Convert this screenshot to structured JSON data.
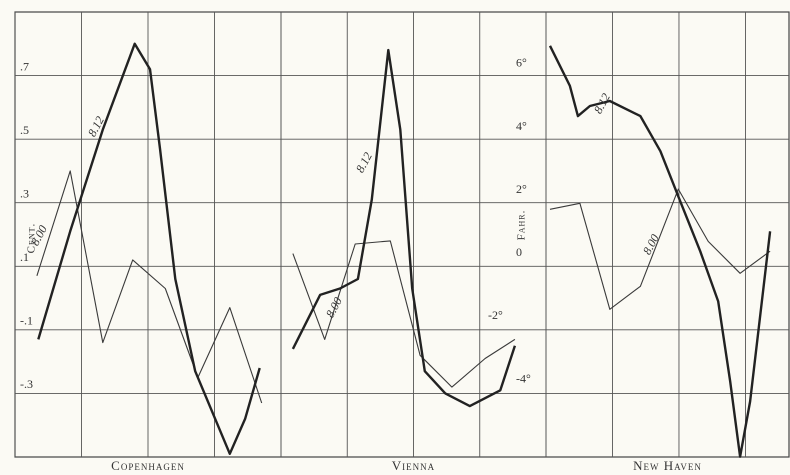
{
  "chart_data": [
    {
      "type": "line",
      "title": "Copenhagen",
      "ylabel": "Cent.",
      "xlim": [
        0,
        4
      ],
      "xticks": [
        0,
        1,
        2,
        3,
        4
      ],
      "ylim": [
        -0.5,
        0.9
      ],
      "yticks": [
        {
          "value": -0.3,
          "label": "-.3"
        },
        {
          "value": -0.1,
          "label": "-.1"
        },
        {
          "value": 0.1,
          "label": ".1"
        },
        {
          "value": 0.3,
          "label": ".3"
        },
        {
          "value": 0.5,
          "label": ".5"
        },
        {
          "value": 0.7,
          "label": ".7"
        }
      ],
      "grid": true,
      "series": [
        {
          "name": "8.00",
          "color": "#3a3a3a",
          "x": [
            0.33,
            0.83,
            1.32,
            1.77,
            2.26,
            2.75,
            3.23,
            3.71
          ],
          "values": [
            0.07,
            0.4,
            -0.14,
            0.12,
            0.03,
            -0.25,
            -0.03,
            -0.33
          ]
        },
        {
          "name": "8.12",
          "color": "#222222",
          "x": [
            0.35,
            0.83,
            1.32,
            1.8,
            2.03,
            2.18,
            2.41,
            2.71,
            3.23,
            3.46,
            3.68
          ],
          "values": [
            -0.13,
            0.21,
            0.53,
            0.8,
            0.72,
            0.47,
            0.06,
            -0.23,
            -0.49,
            -0.38,
            -0.22
          ]
        }
      ]
    },
    {
      "type": "line",
      "title": "Vienna",
      "xlim": [
        0,
        4
      ],
      "xticks": [
        0,
        1,
        2,
        3,
        4
      ],
      "ylim": [
        -0.5,
        0.9
      ],
      "series": [
        {
          "name": "8.00",
          "color": "#3a3a3a",
          "x": [
            0.18,
            0.66,
            1.12,
            1.65,
            2.1,
            2.58,
            3.08,
            3.53
          ],
          "values": [
            0.14,
            -0.13,
            0.17,
            0.18,
            -0.18,
            -0.28,
            -0.19,
            -0.13
          ]
        },
        {
          "name": "8.12",
          "color": "#222222",
          "x": [
            0.18,
            0.59,
            0.89,
            1.16,
            1.37,
            1.62,
            1.8,
            1.98,
            2.17,
            2.48,
            2.85,
            3.31,
            3.53
          ],
          "values": [
            -0.16,
            0.01,
            0.03,
            0.06,
            0.31,
            0.78,
            0.53,
            0.03,
            -0.23,
            -0.3,
            -0.34,
            -0.29,
            -0.15
          ]
        }
      ]
    },
    {
      "type": "line",
      "title": "New Haven",
      "ylabel": "Fahr.",
      "xlim": [
        0,
        3.67
      ],
      "xticks": [
        0,
        1,
        2,
        3
      ],
      "ylim": [
        -6.2,
        7.9
      ],
      "yticks": [
        {
          "value": -4,
          "label": "-4°"
        },
        {
          "value": -2,
          "label": "-2°"
        },
        0,
        {
          "value": 2,
          "label": "2°"
        },
        {
          "value": 4,
          "label": "4°"
        },
        {
          "value": 6,
          "label": "6°"
        }
      ],
      "series": [
        {
          "name": "8.00",
          "color": "#3a3a3a",
          "x": [
            0.06,
            0.51,
            0.96,
            1.42,
            1.99,
            2.44,
            2.92,
            3.37
          ],
          "values": [
            1.65,
            1.84,
            -1.52,
            -0.79,
            2.29,
            0.63,
            -0.38,
            0.32
          ]
        },
        {
          "name": "8.12",
          "color": "#222222",
          "x": [
            0.06,
            0.36,
            0.48,
            0.66,
            0.96,
            1.42,
            1.72,
            2.02,
            2.32,
            2.59,
            2.77,
            2.92,
            3.07,
            3.37
          ],
          "values": [
            6.83,
            5.56,
            4.6,
            4.92,
            5.08,
            4.6,
            3.49,
            1.9,
            0.32,
            -1.27,
            -3.81,
            -6.19,
            -4.44,
            0.95
          ]
        }
      ]
    }
  ]
}
